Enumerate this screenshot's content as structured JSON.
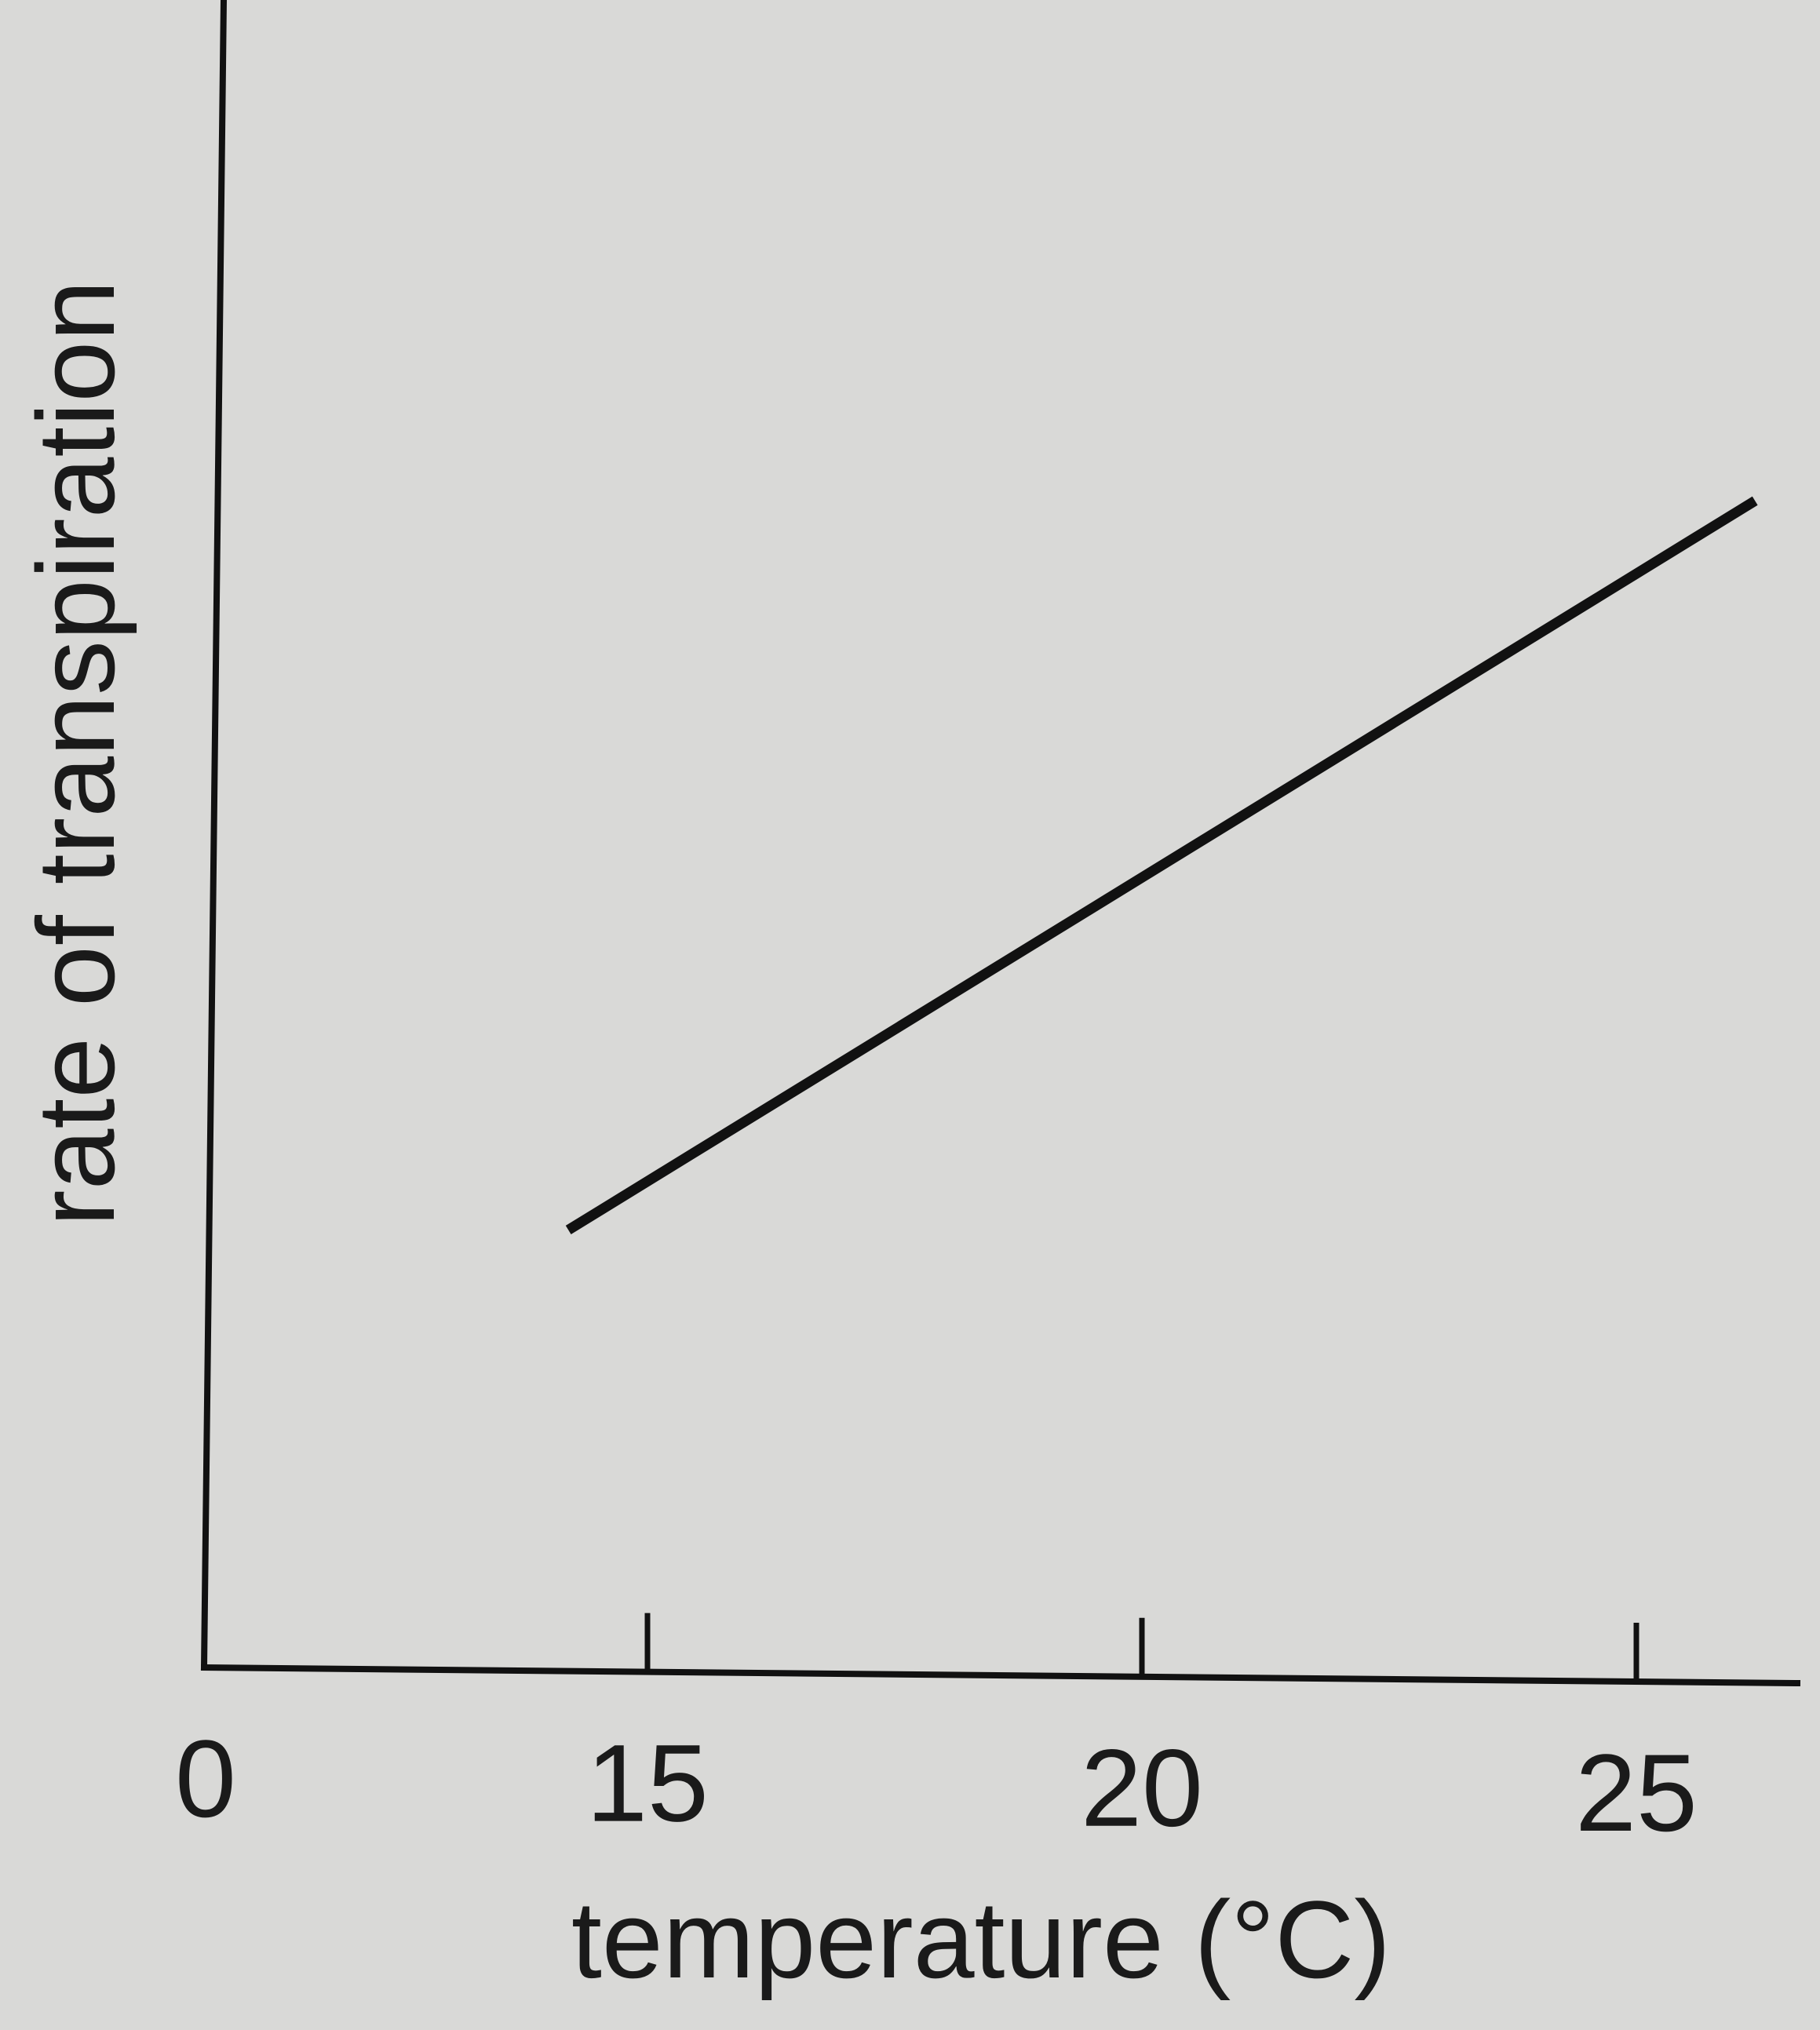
{
  "chart_data": {
    "type": "line",
    "xlabel": "temperature (°C)",
    "ylabel": "rate of transpiration",
    "x_ticks": [
      {
        "value": 0,
        "label": "0"
      },
      {
        "value": 15,
        "label": "15"
      },
      {
        "value": 20,
        "label": "20"
      },
      {
        "value": 25,
        "label": "25"
      }
    ],
    "series": [
      {
        "x": [
          14.2,
          26.2
        ],
        "y": [
          0.27,
          0.72
        ]
      }
    ],
    "xlim": [
      0,
      26.5
    ],
    "ylim": [
      0,
      1
    ],
    "axis_break": true,
    "y_ticks": [],
    "grid": false,
    "colors": {
      "background": "#d9d9d7",
      "ink": "#111111"
    }
  }
}
